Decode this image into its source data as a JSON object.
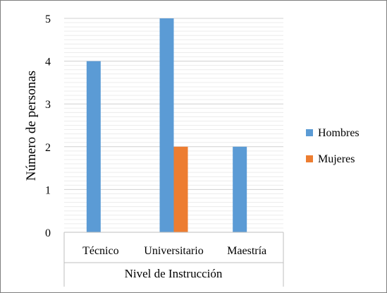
{
  "chart_data": {
    "type": "bar",
    "categories": [
      "Técnico",
      "Universitario",
      "Maestría"
    ],
    "series": [
      {
        "name": "Hombres",
        "values": [
          4,
          5,
          2
        ],
        "color": "#5b9bd5"
      },
      {
        "name": "Mujeres",
        "values": [
          0,
          2,
          0
        ],
        "color": "#ed7d31"
      }
    ],
    "title": "",
    "xlabel": "Nivel de Instrucción",
    "ylabel": "Número de personas",
    "ylim": [
      0,
      5
    ],
    "yticks": [
      "0",
      "1",
      "2",
      "3",
      "4",
      "5"
    ],
    "grid": true,
    "legend_position": "right"
  }
}
